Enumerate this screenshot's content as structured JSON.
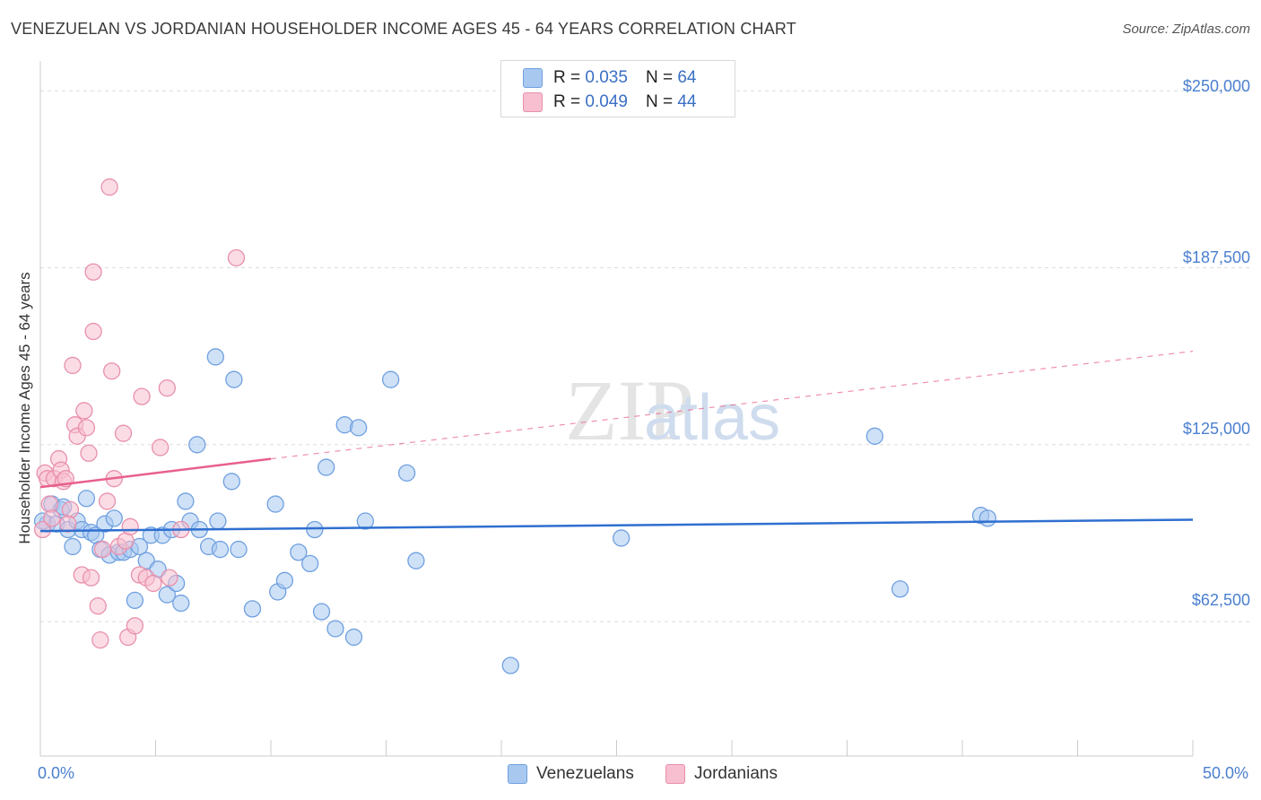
{
  "title": "VENEZUELAN VS JORDANIAN HOUSEHOLDER INCOME AGES 45 - 64 YEARS CORRELATION CHART",
  "source": "Source: ZipAtlas.com",
  "watermark": {
    "zip": "ZIP",
    "atlas": "atlas"
  },
  "legend": {
    "rows": [
      {
        "r_label": "R = ",
        "r_value": "0.035",
        "n_label": "N = ",
        "n_value": "64",
        "color": "#a8c8f0",
        "stroke": "#6fa0e0"
      },
      {
        "r_label": "R = ",
        "r_value": "0.049",
        "n_label": "N = ",
        "n_value": "44",
        "color": "#f7bfd0",
        "stroke": "#e890ac"
      }
    ]
  },
  "chart_data": {
    "type": "scatter",
    "title": "VENEZUELAN VS JORDANIAN HOUSEHOLDER INCOME AGES 45 - 64 YEARS CORRELATION CHART",
    "xlabel": "",
    "ylabel": "Householder Income Ages 45 - 64 years",
    "xlim": [
      0,
      50
    ],
    "ylim": [
      15000,
      258000
    ],
    "x_tick_labels": [
      "0.0%",
      "50.0%"
    ],
    "y_ticks": [
      62500,
      125000,
      187500,
      250000
    ],
    "y_tick_labels": [
      "$62,500",
      "$125,000",
      "$187,500",
      "$250,000"
    ],
    "series": [
      {
        "name": "Venezuelans",
        "color": "#a8c8f0",
        "stroke": "#6fa0e0",
        "trend": {
          "x": [
            0,
            50
          ],
          "y": [
            94500,
            98500
          ],
          "color": "#2f6fd0",
          "style": "solid"
        },
        "points": [
          [
            0.3,
            97000
          ],
          [
            0.5,
            104000
          ],
          [
            0.7,
            97000
          ],
          [
            0.9,
            102000
          ],
          [
            1.0,
            103000
          ],
          [
            1.2,
            95000
          ],
          [
            1.4,
            89000
          ],
          [
            1.6,
            98000
          ],
          [
            1.8,
            95000
          ],
          [
            2.0,
            106000
          ],
          [
            2.2,
            94000
          ],
          [
            2.4,
            93000
          ],
          [
            2.6,
            88000
          ],
          [
            2.8,
            97000
          ],
          [
            3.0,
            86000
          ],
          [
            3.2,
            99000
          ],
          [
            3.4,
            87000
          ],
          [
            3.6,
            87000
          ],
          [
            3.9,
            88000
          ],
          [
            4.1,
            70000
          ],
          [
            4.3,
            89000
          ],
          [
            4.6,
            84000
          ],
          [
            4.8,
            93000
          ],
          [
            5.1,
            81000
          ],
          [
            5.3,
            93000
          ],
          [
            5.5,
            72000
          ],
          [
            5.7,
            95000
          ],
          [
            5.9,
            76000
          ],
          [
            6.1,
            69000
          ],
          [
            6.3,
            105000
          ],
          [
            6.5,
            98000
          ],
          [
            6.8,
            125000
          ],
          [
            6.9,
            95000
          ],
          [
            7.3,
            89000
          ],
          [
            7.6,
            156000
          ],
          [
            7.7,
            98000
          ],
          [
            7.8,
            88000
          ],
          [
            8.3,
            112000
          ],
          [
            8.4,
            148000
          ],
          [
            8.6,
            88000
          ],
          [
            9.2,
            67000
          ],
          [
            10.2,
            104000
          ],
          [
            10.3,
            73000
          ],
          [
            10.6,
            77000
          ],
          [
            11.2,
            87000
          ],
          [
            11.7,
            83000
          ],
          [
            11.9,
            95000
          ],
          [
            12.2,
            66000
          ],
          [
            12.4,
            117000
          ],
          [
            12.8,
            60000
          ],
          [
            13.2,
            132000
          ],
          [
            13.8,
            131000
          ],
          [
            13.6,
            57000
          ],
          [
            14.1,
            98000
          ],
          [
            15.2,
            148000
          ],
          [
            15.9,
            115000
          ],
          [
            16.3,
            84000
          ],
          [
            20.4,
            47000
          ],
          [
            25.2,
            92000
          ],
          [
            36.2,
            128000
          ],
          [
            37.3,
            74000
          ],
          [
            40.8,
            100000
          ],
          [
            41.1,
            99000
          ],
          [
            0.1,
            98000
          ]
        ]
      },
      {
        "name": "Jordanians",
        "color": "#f7bfd0",
        "stroke": "#e890ac",
        "trend": {
          "x": [
            0,
            10
          ],
          "y": [
            110000,
            120000
          ],
          "color": "#e8608c",
          "style": "solid",
          "extend_to": 50,
          "extend_y": 158000
        },
        "points": [
          [
            0.1,
            95000
          ],
          [
            0.2,
            115000
          ],
          [
            0.3,
            113000
          ],
          [
            0.4,
            104000
          ],
          [
            0.6,
            113000
          ],
          [
            0.8,
            120000
          ],
          [
            0.9,
            116000
          ],
          [
            1.0,
            112000
          ],
          [
            1.1,
            113000
          ],
          [
            1.3,
            102000
          ],
          [
            1.4,
            153000
          ],
          [
            1.5,
            132000
          ],
          [
            1.6,
            128000
          ],
          [
            1.8,
            79000
          ],
          [
            1.9,
            137000
          ],
          [
            2.0,
            131000
          ],
          [
            2.1,
            122000
          ],
          [
            2.2,
            78000
          ],
          [
            2.3,
            165000
          ],
          [
            2.3,
            186000
          ],
          [
            2.5,
            68000
          ],
          [
            2.6,
            56000
          ],
          [
            2.7,
            88000
          ],
          [
            2.9,
            105000
          ],
          [
            3.0,
            216000
          ],
          [
            3.1,
            151000
          ],
          [
            3.2,
            113000
          ],
          [
            3.4,
            89000
          ],
          [
            3.6,
            129000
          ],
          [
            3.7,
            91000
          ],
          [
            3.8,
            57000
          ],
          [
            3.9,
            96000
          ],
          [
            4.1,
            61000
          ],
          [
            4.3,
            79000
          ],
          [
            4.4,
            142000
          ],
          [
            4.6,
            78000
          ],
          [
            4.9,
            76000
          ],
          [
            5.2,
            124000
          ],
          [
            5.5,
            145000
          ],
          [
            5.6,
            78000
          ],
          [
            6.1,
            95000
          ],
          [
            8.5,
            191000
          ],
          [
            0.5,
            99000
          ],
          [
            1.2,
            97000
          ]
        ]
      }
    ]
  },
  "bottom_legend": [
    {
      "label": "Venezuelans",
      "color": "#a8c8f0",
      "stroke": "#6fa0e0"
    },
    {
      "label": "Jordanians",
      "color": "#f7bfd0",
      "stroke": "#e890ac"
    }
  ]
}
